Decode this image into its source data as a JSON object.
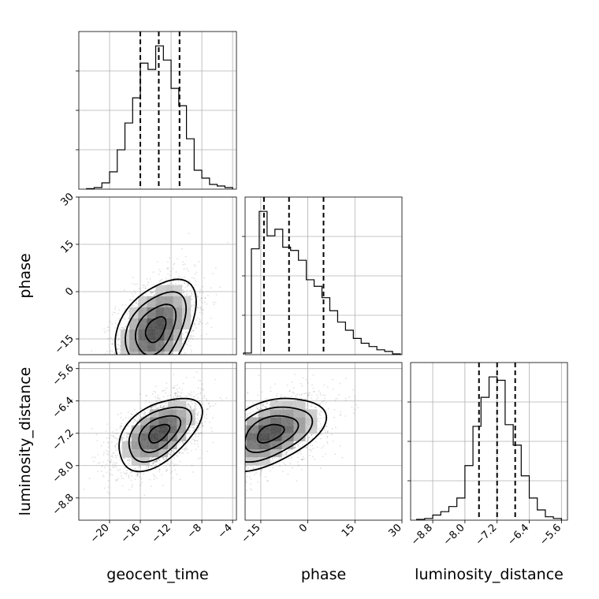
{
  "chart_data": {
    "type": "corner",
    "parameters": [
      {
        "name": "geocent_time",
        "label": "geocent_time",
        "range": [
          -24,
          -3.5
        ],
        "ticks": [
          -20,
          -16,
          -12,
          -8,
          -4
        ],
        "tick_labels": [
          "−20",
          "−16",
          "−12",
          "−8",
          "−4"
        ],
        "quantiles": [
          -16.0,
          -13.6,
          -10.9
        ],
        "hist_edges": [
          -23.0,
          -22.0,
          -21.0,
          -20.0,
          -19.0,
          -18.0,
          -17.0,
          -16.0,
          -15.0,
          -14.0,
          -13.0,
          -12.0,
          -11.0,
          -10.0,
          -9.0,
          -8.0,
          -7.0,
          -6.0,
          -5.0,
          -4.0
        ],
        "hist_values": [
          0.003,
          0.01,
          0.04,
          0.11,
          0.25,
          0.42,
          0.58,
          0.8,
          0.76,
          0.91,
          0.82,
          0.64,
          0.53,
          0.32,
          0.12,
          0.07,
          0.03,
          0.02,
          0.01
        ]
      },
      {
        "name": "phase",
        "label": "phase",
        "range": [
          -20.0,
          30.0
        ],
        "ticks": [
          -15,
          0,
          15,
          30
        ],
        "tick_labels": [
          "−15",
          "0",
          "15",
          "30"
        ],
        "quantiles": [
          -14.0,
          -6.0,
          5.0
        ],
        "hist_edges": [
          -20.5,
          -18.0,
          -15.5,
          -13.0,
          -10.5,
          -8.0,
          -5.5,
          -3.0,
          -0.5,
          2.0,
          4.5,
          7.0,
          9.5,
          12.0,
          14.5,
          17.0,
          19.5,
          22.0,
          24.5,
          27.0,
          29.5
        ],
        "hist_values": [
          0.01,
          0.65,
          0.88,
          0.73,
          0.77,
          0.66,
          0.64,
          0.58,
          0.46,
          0.42,
          0.35,
          0.27,
          0.2,
          0.15,
          0.1,
          0.07,
          0.05,
          0.03,
          0.02,
          0.005
        ]
      },
      {
        "name": "luminosity_distance",
        "label": "luminosity_distance",
        "range": [
          -9.35,
          -5.45
        ],
        "ticks": [
          -8.8,
          -8.0,
          -7.2,
          -6.4,
          -5.6
        ],
        "tick_labels": [
          "−8.8",
          "−8.0",
          "−7.2",
          "−6.4",
          "−5.6"
        ],
        "quantiles": [
          -7.65,
          -7.2,
          -6.75
        ],
        "hist_edges": [
          -9.2,
          -9.0,
          -8.8,
          -8.6,
          -8.4,
          -8.2,
          -8.0,
          -7.8,
          -7.6,
          -7.4,
          -7.2,
          -7.0,
          -6.8,
          -6.6,
          -6.4,
          -6.2,
          -6.0,
          -5.8,
          -5.6
        ],
        "hist_values": [
          0.005,
          0.01,
          0.03,
          0.05,
          0.08,
          0.13,
          0.32,
          0.55,
          0.72,
          0.84,
          0.82,
          0.56,
          0.44,
          0.26,
          0.13,
          0.06,
          0.02,
          0.01
        ]
      }
    ],
    "pairs": [
      {
        "x": "geocent_time",
        "y": "phase",
        "peak": [
          -14.0,
          -12.0
        ],
        "spread": [
          2.6,
          8.0
        ],
        "correlation": 0.4
      },
      {
        "x": "geocent_time",
        "y": "luminosity_distance",
        "peak": [
          -13.6,
          -7.2
        ],
        "spread": [
          2.7,
          0.45
        ],
        "correlation": 0.5
      },
      {
        "x": "phase",
        "y": "luminosity_distance",
        "peak": [
          -12.0,
          -7.2
        ],
        "spread": [
          8.5,
          0.45
        ],
        "correlation": 0.45
      }
    ],
    "grid": true,
    "density_levels": [
      0.118,
      0.393,
      0.675,
      0.864
    ]
  }
}
